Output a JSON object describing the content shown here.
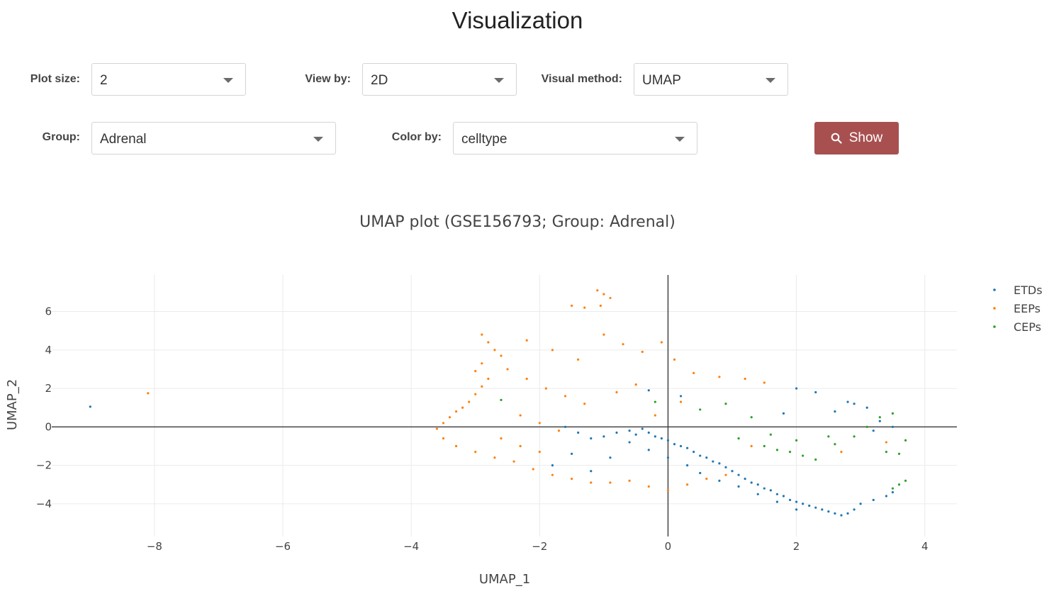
{
  "page": {
    "title": "Visualization"
  },
  "controls": {
    "plot_size": {
      "label": "Plot size:",
      "value": "2"
    },
    "view_by": {
      "label": "View by:",
      "value": "2D"
    },
    "visual_method": {
      "label": "Visual method:",
      "value": "UMAP"
    },
    "group": {
      "label": "Group:",
      "value": "Adrenal"
    },
    "color_by": {
      "label": "Color by:",
      "value": "celltype"
    },
    "show_button": {
      "label": "Show",
      "icon": "search-icon"
    }
  },
  "chart_data": {
    "type": "scatter",
    "title": "UMAP plot (GSE156793; Group: Adrenal)",
    "xlabel": "UMAP_1",
    "ylabel": "UMAP_2",
    "xlim": [
      -9.6,
      4.5
    ],
    "ylim": [
      -5.7,
      7.9
    ],
    "xticks": [
      -8,
      -6,
      -4,
      -2,
      0,
      2,
      4
    ],
    "yticks": [
      -4,
      -2,
      0,
      2,
      4,
      6
    ],
    "tick_labels_x": [
      "−8",
      "−6",
      "−4",
      "−2",
      "0",
      "2",
      "4"
    ],
    "tick_labels_y": [
      "−4",
      "−2",
      "0",
      "2",
      "4",
      "6"
    ],
    "grid": true,
    "zero_lines": true,
    "legend_position": "top-right",
    "series": [
      {
        "name": "ETDs",
        "color": "#1f77b4",
        "points": [
          [
            -9.0,
            1.05
          ],
          [
            -1.6,
            0.0
          ],
          [
            -1.4,
            -0.3
          ],
          [
            -1.2,
            -0.6
          ],
          [
            -1.0,
            -0.5
          ],
          [
            -0.8,
            -0.3
          ],
          [
            -0.6,
            -0.2
          ],
          [
            -0.5,
            -0.4
          ],
          [
            -0.4,
            -0.1
          ],
          [
            -0.3,
            -0.3
          ],
          [
            -0.2,
            -0.5
          ],
          [
            -0.1,
            -0.6
          ],
          [
            0.0,
            -0.7
          ],
          [
            0.1,
            -0.9
          ],
          [
            0.2,
            -1.0
          ],
          [
            0.3,
            -1.1
          ],
          [
            0.4,
            -1.3
          ],
          [
            0.5,
            -1.5
          ],
          [
            0.6,
            -1.6
          ],
          [
            0.7,
            -1.8
          ],
          [
            0.8,
            -1.9
          ],
          [
            0.9,
            -2.1
          ],
          [
            1.0,
            -2.3
          ],
          [
            1.1,
            -2.5
          ],
          [
            1.2,
            -2.7
          ],
          [
            1.3,
            -2.9
          ],
          [
            1.4,
            -3.0
          ],
          [
            1.5,
            -3.2
          ],
          [
            1.6,
            -3.3
          ],
          [
            1.7,
            -3.5
          ],
          [
            1.8,
            -3.6
          ],
          [
            1.9,
            -3.8
          ],
          [
            2.0,
            -3.9
          ],
          [
            2.1,
            -4.0
          ],
          [
            2.2,
            -4.1
          ],
          [
            2.3,
            -4.2
          ],
          [
            2.4,
            -4.3
          ],
          [
            2.5,
            -4.4
          ],
          [
            2.6,
            -4.5
          ],
          [
            2.7,
            -4.6
          ],
          [
            2.8,
            -4.5
          ],
          [
            2.9,
            -4.3
          ],
          [
            3.0,
            -4.0
          ],
          [
            3.2,
            -3.8
          ],
          [
            3.4,
            -3.6
          ],
          [
            3.5,
            -3.4
          ],
          [
            -0.6,
            -0.8
          ],
          [
            -0.3,
            -1.2
          ],
          [
            0.0,
            -1.6
          ],
          [
            0.3,
            -2.0
          ],
          [
            0.5,
            -2.4
          ],
          [
            0.8,
            -2.8
          ],
          [
            1.1,
            -3.1
          ],
          [
            1.4,
            -3.5
          ],
          [
            1.7,
            -3.9
          ],
          [
            2.0,
            -4.3
          ],
          [
            -1.5,
            -1.4
          ],
          [
            -1.8,
            -2.0
          ],
          [
            -1.2,
            -2.3
          ],
          [
            -0.9,
            -1.6
          ],
          [
            2.6,
            0.8
          ],
          [
            2.9,
            1.2
          ],
          [
            3.1,
            1.0
          ],
          [
            3.3,
            0.3
          ],
          [
            3.5,
            0.0
          ],
          [
            2.0,
            2.0
          ],
          [
            2.3,
            1.8
          ],
          [
            1.8,
            0.7
          ],
          [
            0.2,
            1.6
          ],
          [
            -0.3,
            1.9
          ],
          [
            2.8,
            1.3
          ],
          [
            3.2,
            -0.2
          ]
        ]
      },
      {
        "name": "EEPs",
        "color": "#ff7f0e",
        "points": [
          [
            -8.1,
            1.75
          ],
          [
            -1.1,
            7.1
          ],
          [
            -1.0,
            6.9
          ],
          [
            -0.9,
            6.7
          ],
          [
            -1.05,
            6.3
          ],
          [
            -1.5,
            6.3
          ],
          [
            -1.3,
            6.2
          ],
          [
            -2.9,
            4.8
          ],
          [
            -2.8,
            4.4
          ],
          [
            -2.7,
            4.0
          ],
          [
            -2.6,
            3.7
          ],
          [
            -2.9,
            3.3
          ],
          [
            -3.0,
            2.9
          ],
          [
            -2.8,
            2.5
          ],
          [
            -2.9,
            2.1
          ],
          [
            -3.0,
            1.7
          ],
          [
            -3.1,
            1.3
          ],
          [
            -3.2,
            1.0
          ],
          [
            -3.3,
            0.8
          ],
          [
            -3.4,
            0.5
          ],
          [
            -3.5,
            0.2
          ],
          [
            -3.6,
            -0.1
          ],
          [
            -3.5,
            -0.6
          ],
          [
            -3.3,
            -1.0
          ],
          [
            -3.0,
            -1.3
          ],
          [
            -2.7,
            -1.6
          ],
          [
            -2.4,
            -1.8
          ],
          [
            -2.1,
            -2.2
          ],
          [
            -1.8,
            -2.5
          ],
          [
            -1.5,
            -2.7
          ],
          [
            -1.2,
            -2.9
          ],
          [
            -0.9,
            -2.9
          ],
          [
            -0.6,
            -2.8
          ],
          [
            -0.3,
            -3.1
          ],
          [
            0.0,
            -3.3
          ],
          [
            0.3,
            -3.0
          ],
          [
            0.6,
            -2.7
          ],
          [
            0.9,
            -2.5
          ],
          [
            -2.5,
            3.0
          ],
          [
            -2.2,
            2.5
          ],
          [
            -1.9,
            2.0
          ],
          [
            -1.6,
            1.6
          ],
          [
            -1.3,
            1.2
          ],
          [
            -2.3,
            0.6
          ],
          [
            -2.0,
            0.2
          ],
          [
            -1.7,
            -0.2
          ],
          [
            -2.6,
            -0.6
          ],
          [
            -2.3,
            -1.0
          ],
          [
            -2.0,
            -1.3
          ],
          [
            -1.0,
            4.8
          ],
          [
            -0.7,
            4.3
          ],
          [
            -0.4,
            3.9
          ],
          [
            -0.1,
            4.4
          ],
          [
            0.1,
            3.5
          ],
          [
            0.4,
            2.8
          ],
          [
            0.8,
            2.6
          ],
          [
            1.2,
            2.5
          ],
          [
            1.5,
            2.3
          ],
          [
            -1.4,
            3.5
          ],
          [
            -1.8,
            4.0
          ],
          [
            -2.2,
            4.5
          ],
          [
            -0.5,
            2.2
          ],
          [
            -0.8,
            1.8
          ],
          [
            3.4,
            -0.8
          ],
          [
            2.7,
            -1.3
          ],
          [
            1.3,
            -1.0
          ],
          [
            -0.2,
            0.6
          ],
          [
            0.2,
            1.3
          ]
        ]
      },
      {
        "name": "CEPs",
        "color": "#2ca02c",
        "points": [
          [
            -2.6,
            1.4
          ],
          [
            -0.2,
            1.3
          ],
          [
            0.5,
            0.9
          ],
          [
            0.9,
            1.2
          ],
          [
            1.3,
            0.5
          ],
          [
            1.1,
            -0.6
          ],
          [
            1.5,
            -1.0
          ],
          [
            1.7,
            -1.2
          ],
          [
            1.9,
            -1.3
          ],
          [
            2.1,
            -1.5
          ],
          [
            2.3,
            -1.7
          ],
          [
            2.6,
            -0.9
          ],
          [
            2.9,
            -0.5
          ],
          [
            3.1,
            0.0
          ],
          [
            3.3,
            0.5
          ],
          [
            3.5,
            0.7
          ],
          [
            3.7,
            -0.7
          ],
          [
            3.6,
            -1.4
          ],
          [
            3.4,
            -1.3
          ],
          [
            3.6,
            -3.0
          ],
          [
            3.5,
            -3.2
          ],
          [
            3.7,
            -2.8
          ],
          [
            2.5,
            -0.5
          ],
          [
            1.6,
            -0.4
          ],
          [
            2.0,
            -0.7
          ]
        ]
      }
    ]
  }
}
